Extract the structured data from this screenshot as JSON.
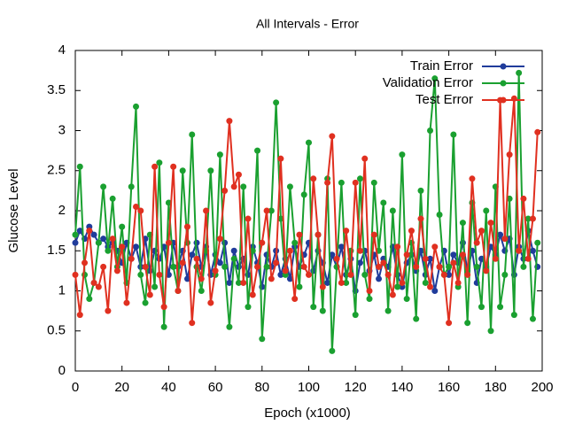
{
  "chart_data": {
    "type": "line",
    "title": "All Intervals - Error",
    "xlabel": "Epoch (x1000)",
    "ylabel": "Glucose Level",
    "xlim": [
      0,
      200
    ],
    "xticks": [
      0,
      20,
      40,
      60,
      80,
      100,
      120,
      140,
      160,
      180,
      200
    ],
    "ylim": [
      0,
      4
    ],
    "yticks": [
      0,
      0.5,
      1,
      1.5,
      2,
      2.5,
      3,
      3.5,
      4
    ],
    "grid": false,
    "legend": "top-right",
    "x": [
      0,
      2,
      4,
      6,
      8,
      10,
      12,
      14,
      16,
      18,
      20,
      22,
      24,
      26,
      28,
      30,
      32,
      34,
      36,
      38,
      40,
      42,
      44,
      46,
      48,
      50,
      52,
      54,
      56,
      58,
      60,
      62,
      64,
      66,
      68,
      70,
      72,
      74,
      76,
      78,
      80,
      82,
      84,
      86,
      88,
      90,
      92,
      94,
      96,
      98,
      100,
      102,
      104,
      106,
      108,
      110,
      112,
      114,
      116,
      118,
      120,
      122,
      124,
      126,
      128,
      130,
      132,
      134,
      136,
      138,
      140,
      142,
      144,
      146,
      148,
      150,
      152,
      154,
      156,
      158,
      160,
      162,
      164,
      166,
      168,
      170,
      172,
      174,
      176,
      178,
      180,
      182,
      184,
      186,
      188,
      190,
      192,
      194,
      196,
      198
    ],
    "series": [
      {
        "name": "Train Error",
        "color": "#203c9b",
        "values": [
          1.6,
          1.75,
          1.65,
          1.8,
          1.7,
          1.6,
          1.65,
          1.55,
          1.6,
          1.5,
          1.35,
          1.6,
          1.4,
          1.55,
          1.3,
          1.65,
          1.25,
          1.5,
          1.4,
          1.55,
          1.2,
          1.6,
          1.3,
          1.5,
          1.15,
          1.45,
          1.6,
          1.3,
          1.55,
          1.2,
          1.45,
          1.35,
          1.6,
          1.1,
          1.5,
          1.3,
          1.4,
          1.2,
          1.55,
          1.35,
          1.05,
          1.45,
          1.3,
          1.5,
          1.2,
          1.4,
          1.15,
          1.55,
          1.3,
          1.45,
          1.6,
          1.25,
          1.5,
          1.35,
          1.1,
          1.45,
          1.3,
          1.55,
          1.2,
          1.4,
          1.0,
          1.35,
          1.5,
          1.25,
          1.45,
          1.15,
          1.4,
          1.3,
          1.55,
          1.2,
          1.05,
          1.35,
          1.45,
          1.25,
          1.5,
          1.2,
          1.4,
          1.0,
          1.3,
          1.5,
          1.2,
          1.45,
          1.35,
          1.6,
          1.25,
          1.5,
          1.1,
          1.4,
          1.3,
          1.55,
          1.45,
          1.7,
          1.5,
          1.65,
          1.2,
          1.55,
          1.4,
          1.75,
          1.5,
          1.3
        ]
      },
      {
        "name": "Validation Error",
        "color": "#1aa030",
        "values": [
          1.7,
          2.55,
          1.2,
          0.9,
          1.1,
          1.6,
          2.3,
          1.5,
          2.15,
          1.3,
          1.8,
          1.1,
          2.3,
          3.3,
          1.2,
          0.85,
          1.7,
          1.05,
          2.6,
          0.55,
          2.1,
          1.3,
          1.0,
          2.5,
          1.6,
          2.95,
          1.3,
          1.0,
          1.5,
          2.5,
          1.2,
          2.7,
          1.3,
          0.55,
          1.4,
          1.1,
          2.3,
          0.8,
          1.5,
          2.75,
          0.4,
          1.3,
          2.0,
          3.35,
          1.9,
          1.2,
          2.3,
          1.6,
          1.05,
          2.2,
          2.85,
          0.8,
          1.7,
          0.75,
          2.4,
          0.25,
          1.3,
          2.35,
          1.1,
          1.5,
          0.7,
          2.4,
          1.2,
          0.9,
          2.35,
          1.5,
          2.1,
          0.75,
          2.0,
          1.05,
          2.7,
          0.9,
          1.6,
          0.65,
          2.25,
          1.1,
          3.0,
          3.65,
          1.95,
          1.2,
          1.3,
          2.95,
          1.05,
          1.85,
          0.6,
          2.1,
          1.3,
          0.8,
          2.0,
          0.5,
          2.3,
          0.8,
          1.2,
          2.15,
          0.7,
          3.72,
          1.3,
          1.9,
          0.65,
          1.6
        ]
      },
      {
        "name": "Test Error",
        "color": "#e03020",
        "values": [
          1.2,
          0.7,
          1.35,
          1.75,
          1.1,
          1.05,
          1.3,
          0.75,
          1.65,
          1.25,
          1.55,
          0.85,
          1.4,
          2.05,
          2.0,
          1.3,
          0.95,
          2.55,
          1.2,
          0.8,
          1.6,
          2.55,
          1.0,
          1.35,
          1.8,
          0.6,
          1.4,
          1.15,
          2.0,
          0.85,
          1.25,
          1.65,
          2.25,
          3.12,
          2.3,
          2.45,
          1.1,
          1.9,
          0.95,
          1.3,
          1.6,
          2.0,
          1.15,
          1.35,
          2.65,
          1.25,
          1.5,
          0.9,
          1.7,
          1.3,
          1.2,
          2.4,
          1.7,
          1.05,
          2.35,
          2.93,
          1.4,
          1.1,
          1.75,
          1.2,
          2.35,
          1.5,
          2.65,
          1.0,
          1.7,
          1.3,
          1.35,
          1.2,
          0.95,
          1.55,
          1.1,
          1.45,
          1.75,
          1.3,
          1.9,
          1.4,
          1.05,
          1.55,
          1.3,
          1.2,
          0.6,
          1.35,
          1.1,
          1.45,
          1.2,
          2.4,
          1.6,
          1.75,
          1.25,
          1.85,
          1.4,
          3.38,
          1.65,
          2.7,
          3.4,
          1.5,
          2.15,
          1.4,
          1.9,
          2.98
        ]
      }
    ]
  }
}
